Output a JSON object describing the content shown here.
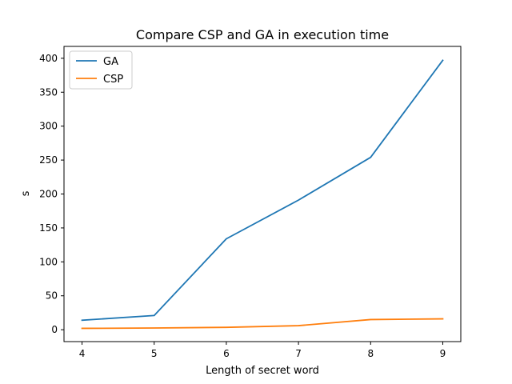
{
  "chart_data": {
    "type": "line",
    "title": "Compare CSP and GA in execution time",
    "xlabel": "Length of secret word",
    "ylabel": "s",
    "x": [
      4,
      5,
      6,
      7,
      8,
      9
    ],
    "xlim": [
      3.75,
      9.25
    ],
    "ylim": [
      -17.5,
      417.5
    ],
    "xticks": [
      4,
      5,
      6,
      7,
      8,
      9
    ],
    "yticks": [
      0,
      50,
      100,
      150,
      200,
      250,
      300,
      350,
      400
    ],
    "grid": false,
    "legend_position": "upper-left",
    "series": [
      {
        "name": "GA",
        "color": "#1f77b4",
        "values": [
          14,
          21,
          134,
          191,
          254,
          397
        ]
      },
      {
        "name": "CSP",
        "color": "#ff7f0e",
        "values": [
          2,
          2.5,
          3.5,
          6,
          15,
          16
        ]
      }
    ]
  }
}
